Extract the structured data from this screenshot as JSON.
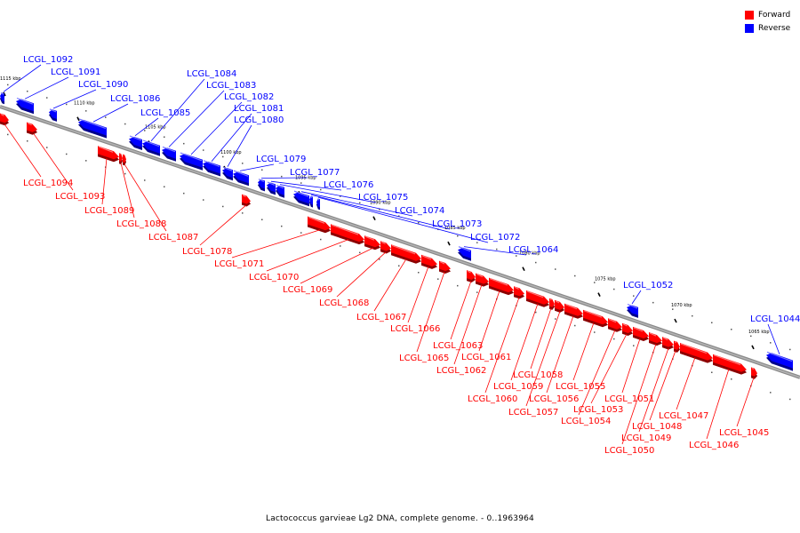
{
  "legend": {
    "forward_label": "Forward",
    "reverse_label": "Reverse",
    "forward_color": "#ff0000",
    "reverse_color": "#0000ff"
  },
  "caption": "Lactococcus garvieae Lg2 DNA, complete genome. - 0..1963964",
  "ticks": [
    "1115 kbp",
    "1110 kbp",
    "1105 kbp",
    "1100 kbp",
    "1095 kbp",
    "1090 kbp",
    "1085 kbp",
    "1080 kbp",
    "1075 kbp",
    "1070 kbp",
    "1065 kbp"
  ],
  "reverse_genes": [
    "LCGL_1092",
    "LCGL_1091",
    "LCGL_1090",
    "LCGL_1086",
    "LCGL_1085",
    "LCGL_1084",
    "LCGL_1083",
    "LCGL_1082",
    "LCGL_1081",
    "LCGL_1080",
    "LCGL_1079",
    "LCGL_1077",
    "LCGL_1076",
    "LCGL_1075",
    "LCGL_1074",
    "LCGL_1073",
    "LCGL_1072",
    "LCGL_1064",
    "LCGL_1052",
    "LCGL_1044"
  ],
  "forward_genes": [
    "LCGL_1094",
    "LCGL_1093",
    "LCGL_1089",
    "LCGL_1088",
    "LCGL_1087",
    "LCGL_1078",
    "LCGL_1071",
    "LCGL_1070",
    "LCGL_1069",
    "LCGL_1068",
    "LCGL_1067",
    "LCGL_1066",
    "LCGL_1065",
    "LCGL_1063",
    "LCGL_1062",
    "LCGL_1061",
    "LCGL_1060",
    "LCGL_1059",
    "LCGL_1058",
    "LCGL_1057",
    "LCGL_1056",
    "LCGL_1055",
    "LCGL_1054",
    "LCGL_1053",
    "LCGL_1051",
    "LCGL_1050",
    "LCGL_1049",
    "LCGL_1048",
    "LCGL_1047",
    "LCGL_1046",
    "LCGL_1045"
  ]
}
